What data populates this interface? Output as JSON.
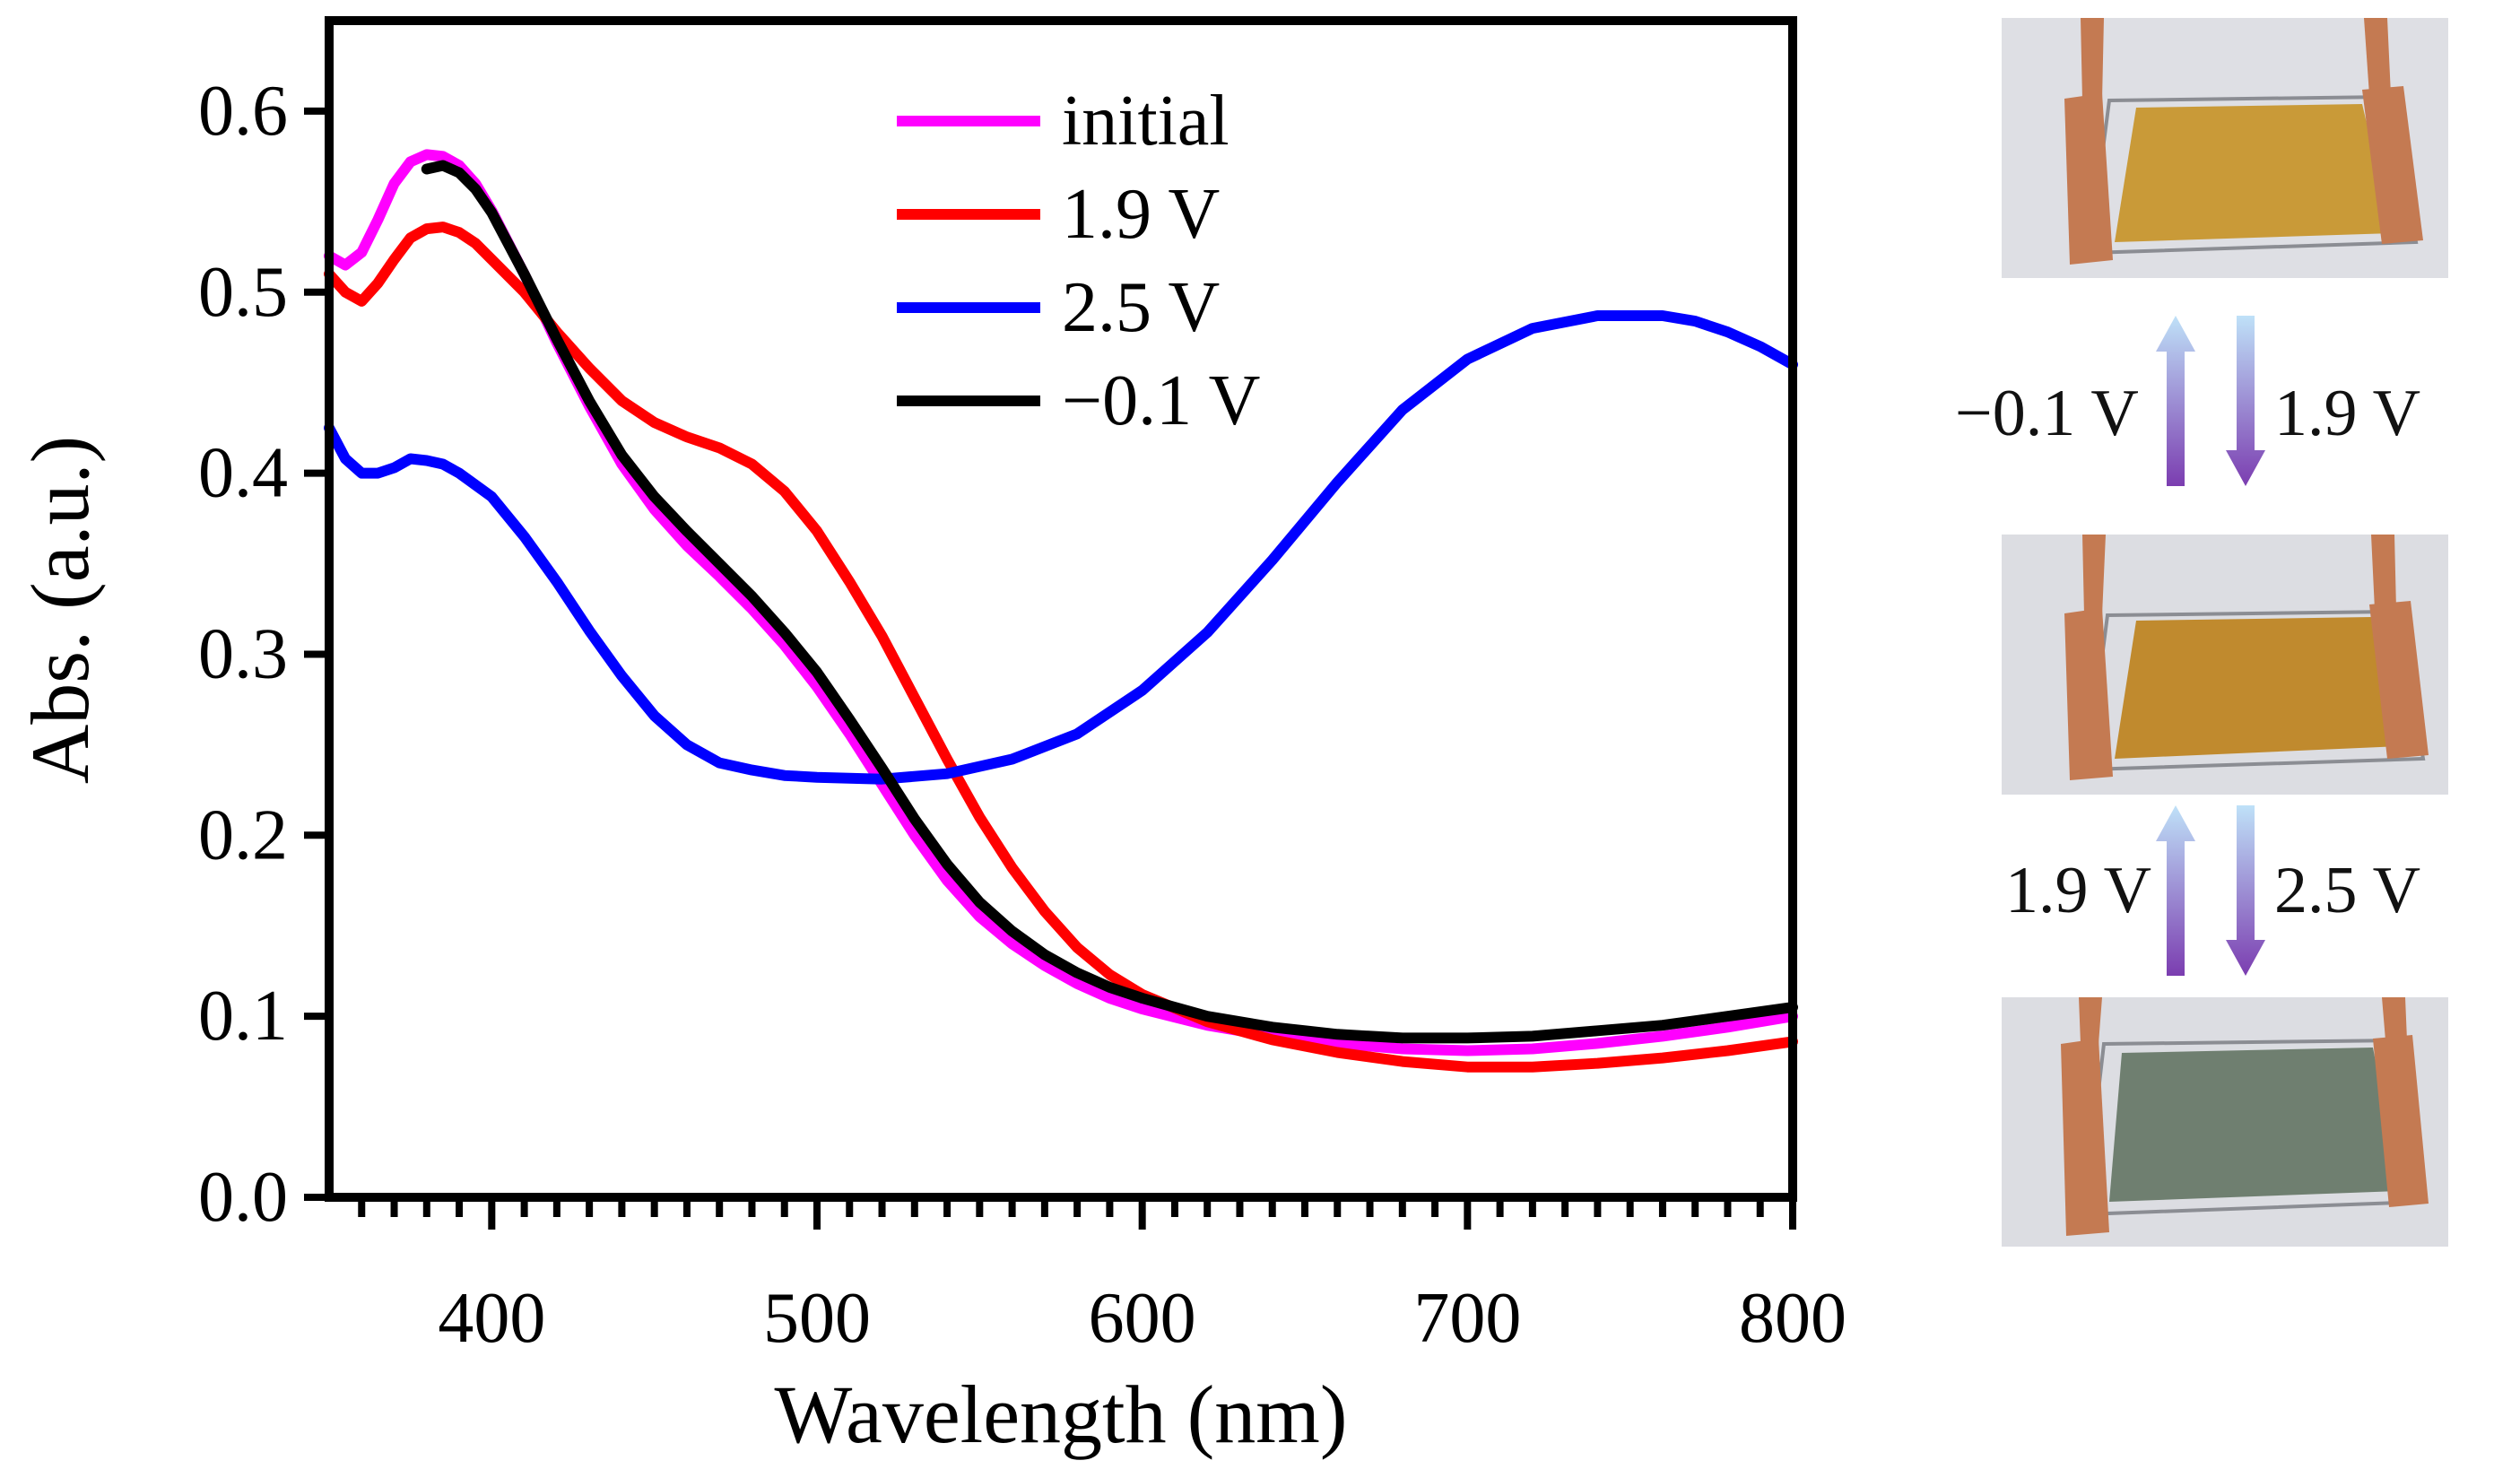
{
  "chart_data": {
    "type": "line",
    "xlabel": "Wavelength (nm)",
    "ylabel": "Abs. (a.u.)",
    "xlim": [
      350,
      800
    ],
    "ylim": [
      0.0,
      0.65
    ],
    "xticks": [
      400,
      500,
      600,
      700,
      800
    ],
    "xtick_labels": [
      "400",
      "500",
      "600",
      "700",
      "800"
    ],
    "yticks": [
      0.0,
      0.1,
      0.2,
      0.3,
      0.4,
      0.5,
      0.6
    ],
    "ytick_labels": [
      "0.0",
      "0.1",
      "0.2",
      "0.3",
      "0.4",
      "0.5",
      "0.6"
    ],
    "x_minor_step": 10,
    "legend_position": "top-center",
    "series": [
      {
        "name": "initial",
        "color": "#ff00ff",
        "x": [
          350,
          355,
          360,
          365,
          370,
          375,
          380,
          385,
          390,
          395,
          400,
          410,
          420,
          430,
          440,
          450,
          460,
          470,
          480,
          490,
          500,
          510,
          520,
          530,
          540,
          550,
          560,
          570,
          580,
          590,
          600,
          620,
          640,
          660,
          680,
          700,
          720,
          740,
          760,
          780,
          800
        ],
        "values": [
          0.52,
          0.515,
          0.522,
          0.54,
          0.56,
          0.572,
          0.576,
          0.575,
          0.57,
          0.56,
          0.545,
          0.51,
          0.472,
          0.437,
          0.405,
          0.38,
          0.36,
          0.343,
          0.325,
          0.305,
          0.282,
          0.256,
          0.228,
          0.2,
          0.175,
          0.155,
          0.14,
          0.128,
          0.118,
          0.11,
          0.104,
          0.095,
          0.089,
          0.085,
          0.082,
          0.081,
          0.082,
          0.085,
          0.089,
          0.094,
          0.1
        ]
      },
      {
        "name": "1.9 V",
        "color": "#ff0000",
        "x": [
          350,
          355,
          360,
          365,
          370,
          375,
          380,
          385,
          390,
          395,
          400,
          410,
          420,
          430,
          440,
          450,
          460,
          470,
          480,
          490,
          500,
          510,
          520,
          530,
          540,
          550,
          560,
          570,
          580,
          590,
          600,
          620,
          640,
          660,
          680,
          700,
          720,
          740,
          760,
          780,
          800
        ],
        "values": [
          0.51,
          0.5,
          0.495,
          0.505,
          0.518,
          0.53,
          0.535,
          0.536,
          0.533,
          0.527,
          0.518,
          0.5,
          0.478,
          0.458,
          0.44,
          0.428,
          0.42,
          0.414,
          0.405,
          0.39,
          0.368,
          0.34,
          0.31,
          0.276,
          0.242,
          0.21,
          0.182,
          0.158,
          0.138,
          0.123,
          0.112,
          0.097,
          0.087,
          0.08,
          0.075,
          0.072,
          0.072,
          0.074,
          0.077,
          0.081,
          0.086
        ]
      },
      {
        "name": "2.5 V",
        "color": "#0000ff",
        "x": [
          350,
          355,
          360,
          365,
          370,
          375,
          380,
          385,
          390,
          400,
          410,
          420,
          430,
          440,
          450,
          460,
          470,
          480,
          490,
          500,
          520,
          540,
          560,
          580,
          600,
          620,
          640,
          660,
          680,
          700,
          720,
          740,
          760,
          770,
          780,
          790,
          800
        ],
        "values": [
          0.425,
          0.408,
          0.4,
          0.4,
          0.403,
          0.408,
          0.407,
          0.405,
          0.4,
          0.387,
          0.365,
          0.34,
          0.313,
          0.288,
          0.266,
          0.25,
          0.24,
          0.236,
          0.233,
          0.232,
          0.231,
          0.234,
          0.242,
          0.256,
          0.28,
          0.312,
          0.352,
          0.395,
          0.435,
          0.463,
          0.48,
          0.487,
          0.487,
          0.484,
          0.478,
          0.47,
          0.46
        ]
      },
      {
        "name": "−0.1 V",
        "color": "#000000",
        "x": [
          380,
          385,
          390,
          395,
          400,
          410,
          420,
          430,
          440,
          450,
          460,
          470,
          480,
          490,
          500,
          510,
          520,
          530,
          540,
          550,
          560,
          570,
          580,
          590,
          600,
          620,
          640,
          660,
          680,
          700,
          720,
          740,
          760,
          780,
          800
        ],
        "values": [
          0.568,
          0.57,
          0.566,
          0.557,
          0.544,
          0.51,
          0.474,
          0.44,
          0.41,
          0.387,
          0.368,
          0.35,
          0.332,
          0.312,
          0.29,
          0.264,
          0.237,
          0.209,
          0.184,
          0.163,
          0.147,
          0.134,
          0.124,
          0.116,
          0.11,
          0.1,
          0.094,
          0.09,
          0.088,
          0.088,
          0.089,
          0.092,
          0.095,
          0.1,
          0.105
        ]
      }
    ]
  },
  "device_panel": {
    "photos": [
      {
        "state": "initial",
        "film_color": "#c99a38"
      },
      {
        "state": "-0.1 V / 1.9 V",
        "film_color": "#c08a2e"
      },
      {
        "state": "2.5 V",
        "film_color": "#6f7f70"
      }
    ],
    "transition_1": {
      "left_label": "−0.1 V",
      "right_label": "1.9 V"
    },
    "transition_2": {
      "left_label": "1.9 V",
      "right_label": "2.5 V"
    },
    "arrow_colors": {
      "light": "#bfe1f8",
      "dark": "#7b3db0"
    }
  }
}
